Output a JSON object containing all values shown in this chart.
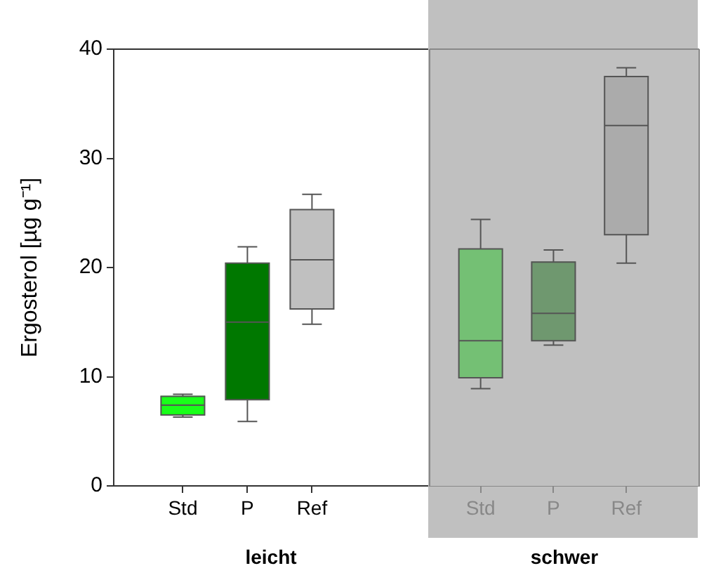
{
  "chart_data": [
    {
      "type": "box",
      "xlabel": "leicht",
      "ylabel": "Ergosterol [µg g⁻¹]",
      "categories": [
        "Std",
        "P",
        "Ref"
      ],
      "colors": [
        "#19ff19",
        "#007800",
        "#c0c0c0"
      ],
      "ylim": [
        0,
        40
      ],
      "yticks": [
        0,
        10,
        20,
        30,
        40
      ],
      "boxes": [
        {
          "low": 6.3,
          "q1": 6.5,
          "median": 7.4,
          "q3": 8.2,
          "high": 8.4
        },
        {
          "low": 5.9,
          "q1": 7.9,
          "median": 15.0,
          "q3": 20.4,
          "high": 21.9
        },
        {
          "low": 14.8,
          "q1": 16.2,
          "median": 20.7,
          "q3": 25.3,
          "high": 26.7
        }
      ]
    },
    {
      "type": "box",
      "xlabel": "schwer",
      "categories": [
        "Std",
        "P",
        "Ref"
      ],
      "colors": [
        "#74c074",
        "#6f986f",
        "#ababab"
      ],
      "ylim": [
        0,
        40
      ],
      "yticks": [
        0,
        10,
        20,
        30,
        40
      ],
      "tick_labels": "x",
      "bands": [
        {
          "axis": "y",
          "from": 0,
          "to": 40,
          "color": "#c0c0c0"
        }
      ],
      "boxes": [
        {
          "low": 8.9,
          "q1": 9.9,
          "median": 13.3,
          "q3": 21.7,
          "high": 24.4
        },
        {
          "low": 12.9,
          "q1": 13.3,
          "median": 15.8,
          "q3": 20.5,
          "high": 21.6
        },
        {
          "low": 20.4,
          "q1": 23.0,
          "median": 33.0,
          "q3": 37.5,
          "high": 38.3
        }
      ]
    }
  ]
}
